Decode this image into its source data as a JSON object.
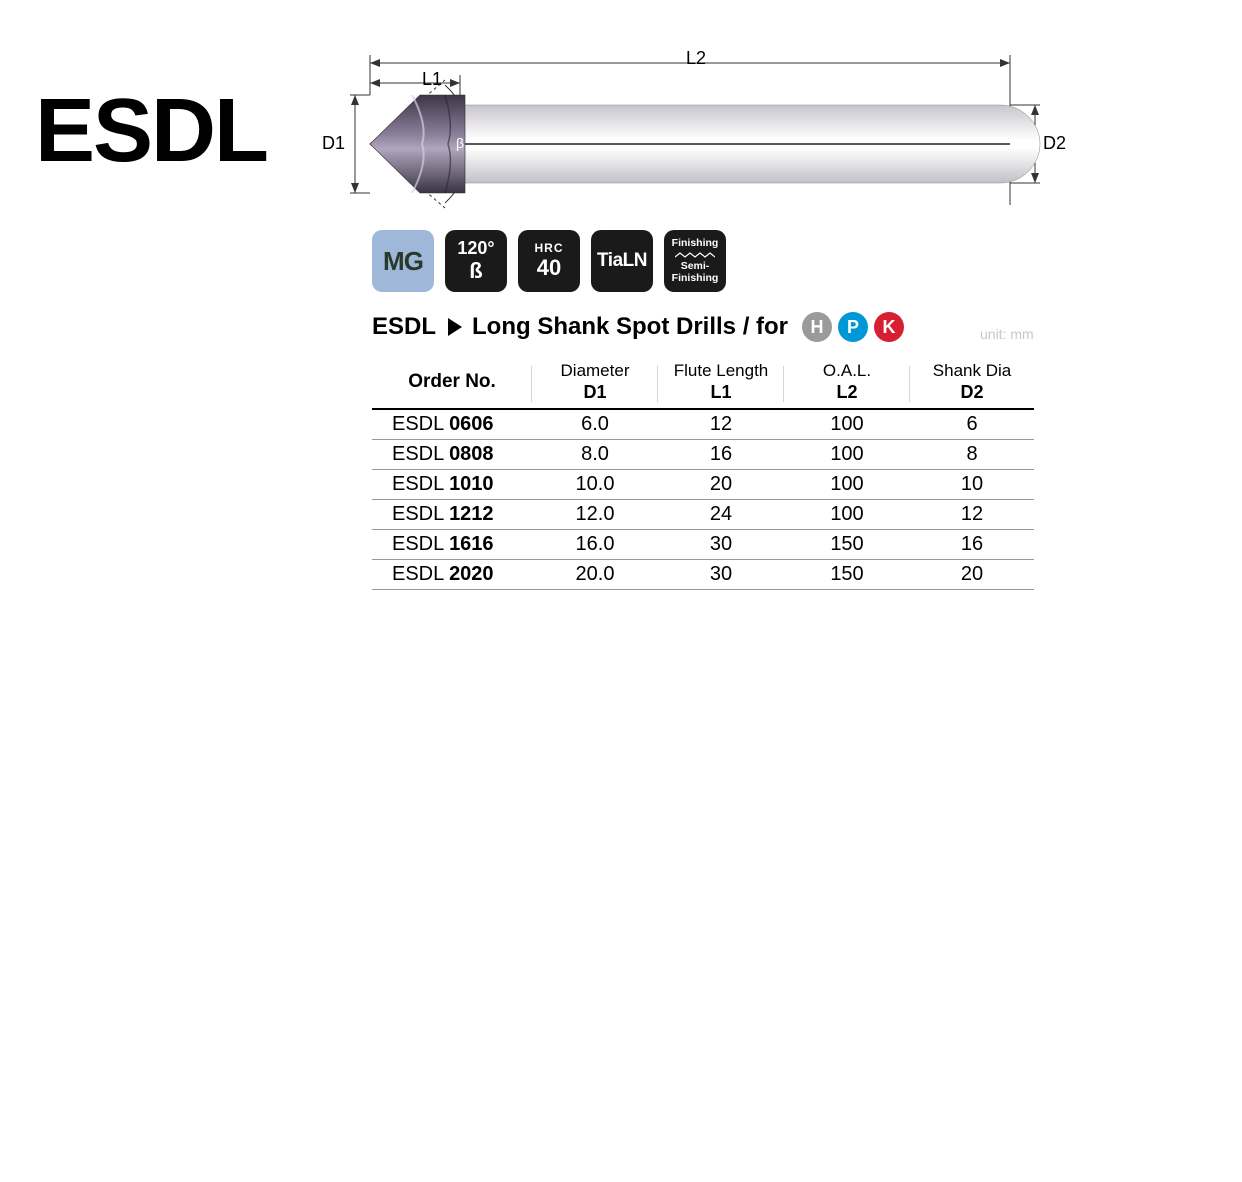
{
  "title": "ESDL",
  "diagram": {
    "label_L2": "L2",
    "label_L1": "L1",
    "label_D1": "D1",
    "label_D2": "D2",
    "label_beta": "β",
    "tip_color": "#6a5e78",
    "shank_color": "#f0eef2",
    "shank_highlight": "#ffffff",
    "line_color": "#333333"
  },
  "badges": {
    "mg": "MG",
    "angle_value": "120°",
    "angle_symbol": "ß",
    "hrc_label": "HRC",
    "hrc_value": "40",
    "coating": "TiaLN",
    "finishing_line1": "Finishing",
    "finishing_line2": "Semi-",
    "finishing_line3": "Finishing",
    "blue_bg": "#9fb8d9",
    "dark_bg": "#1a1a1a"
  },
  "header": {
    "code": "ESDL",
    "desc": "Long Shank Spot Drills / for",
    "chips": [
      {
        "label": "H",
        "color": "#9a9a9a"
      },
      {
        "label": "P",
        "color": "#0097d6"
      },
      {
        "label": "K",
        "color": "#d62031"
      }
    ],
    "unit": "unit: mm"
  },
  "table": {
    "columns": {
      "order": "Order No.",
      "d1_label": "Diameter",
      "d1_sub": "D1",
      "l1_label": "Flute Length",
      "l1_sub": "L1",
      "l2_label": "O.A.L.",
      "l2_sub": "L2",
      "d2_label": "Shank Dia",
      "d2_sub": "D2"
    },
    "prefix": "ESDL",
    "rows": [
      {
        "code": "0606",
        "d1": "6.0",
        "l1": "12",
        "l2": "100",
        "d2": "6"
      },
      {
        "code": "0808",
        "d1": "8.0",
        "l1": "16",
        "l2": "100",
        "d2": "8"
      },
      {
        "code": "1010",
        "d1": "10.0",
        "l1": "20",
        "l2": "100",
        "d2": "10"
      },
      {
        "code": "1212",
        "d1": "12.0",
        "l1": "24",
        "l2": "100",
        "d2": "12"
      },
      {
        "code": "1616",
        "d1": "16.0",
        "l1": "30",
        "l2": "150",
        "d2": "16"
      },
      {
        "code": "2020",
        "d1": "20.0",
        "l1": "30",
        "l2": "150",
        "d2": "20"
      }
    ]
  }
}
